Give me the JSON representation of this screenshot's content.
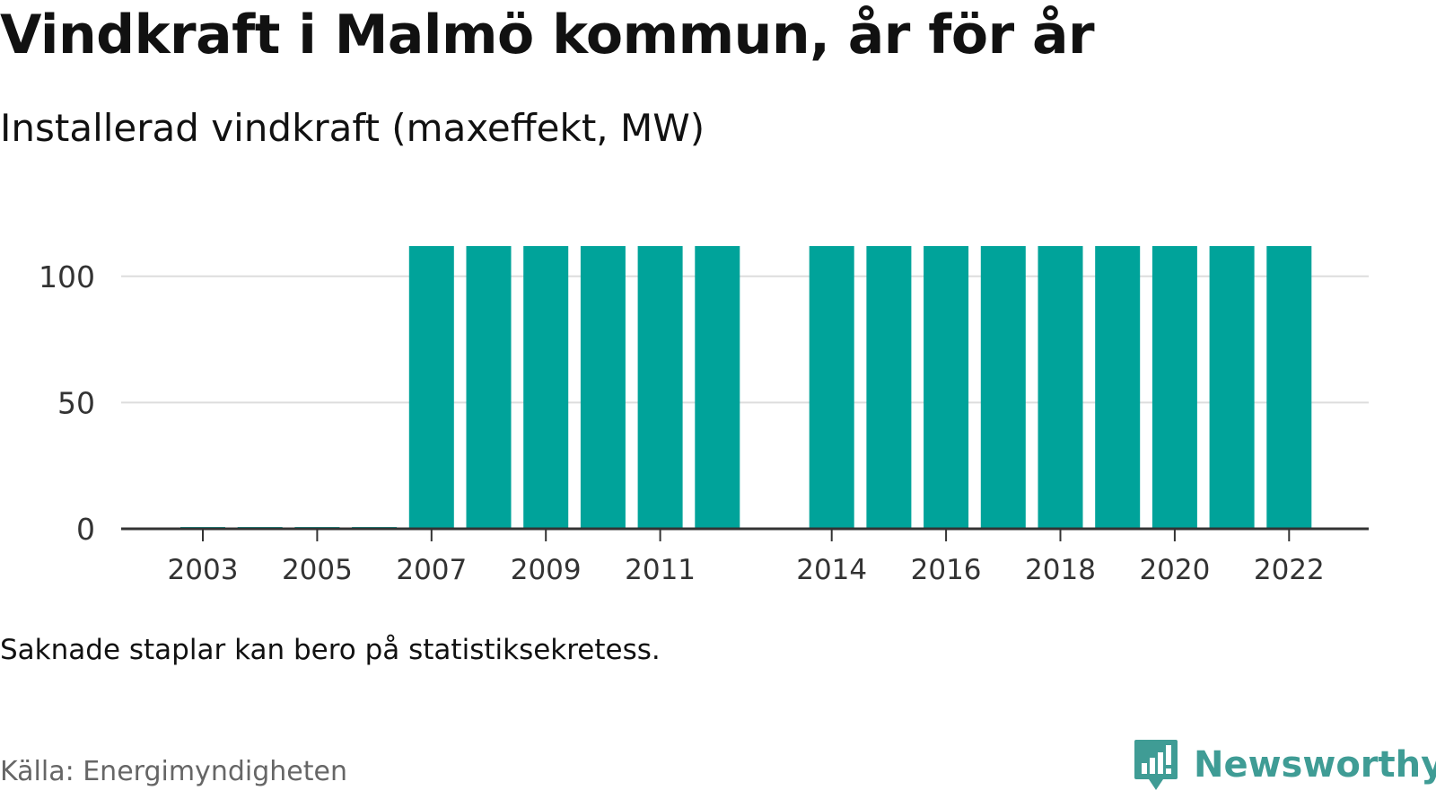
{
  "title": "Vindkraft i Malmö kommun, år för år",
  "subtitle": "Installerad vindkraft (maxeffekt, MW)",
  "note": "Saknade staplar kan bero på statistiksekretess.",
  "source": "Källa: Energimyndigheten",
  "brand": {
    "name": "Newsworthy",
    "icon": "newsworthy-logo-icon",
    "color": "#3f9c95"
  },
  "colors": {
    "bar": "#00a39a",
    "grid": "#dddddd",
    "axis": "#333333"
  },
  "chart_data": {
    "type": "bar",
    "categories": [
      "2003",
      "2004",
      "2005",
      "2006",
      "2007",
      "2008",
      "2009",
      "2010",
      "2011",
      "2012",
      "2014",
      "2015",
      "2016",
      "2017",
      "2018",
      "2019",
      "2020",
      "2021",
      "2022"
    ],
    "values": [
      0.7,
      0.7,
      0.7,
      0.7,
      112,
      112,
      112,
      112,
      112,
      112,
      112,
      112,
      112,
      112,
      112,
      112,
      112,
      112,
      112
    ],
    "tick_labels_x": [
      "2003",
      "2005",
      "2007",
      "2009",
      "2011",
      "2014",
      "2016",
      "2018",
      "2020",
      "2022"
    ],
    "tick_labels_y": [
      "0",
      "50",
      "100"
    ],
    "yticks": [
      0,
      50,
      100
    ],
    "ylim": [
      0,
      125
    ],
    "xlabel": "",
    "ylabel": "",
    "grid": true,
    "legend": "none"
  }
}
